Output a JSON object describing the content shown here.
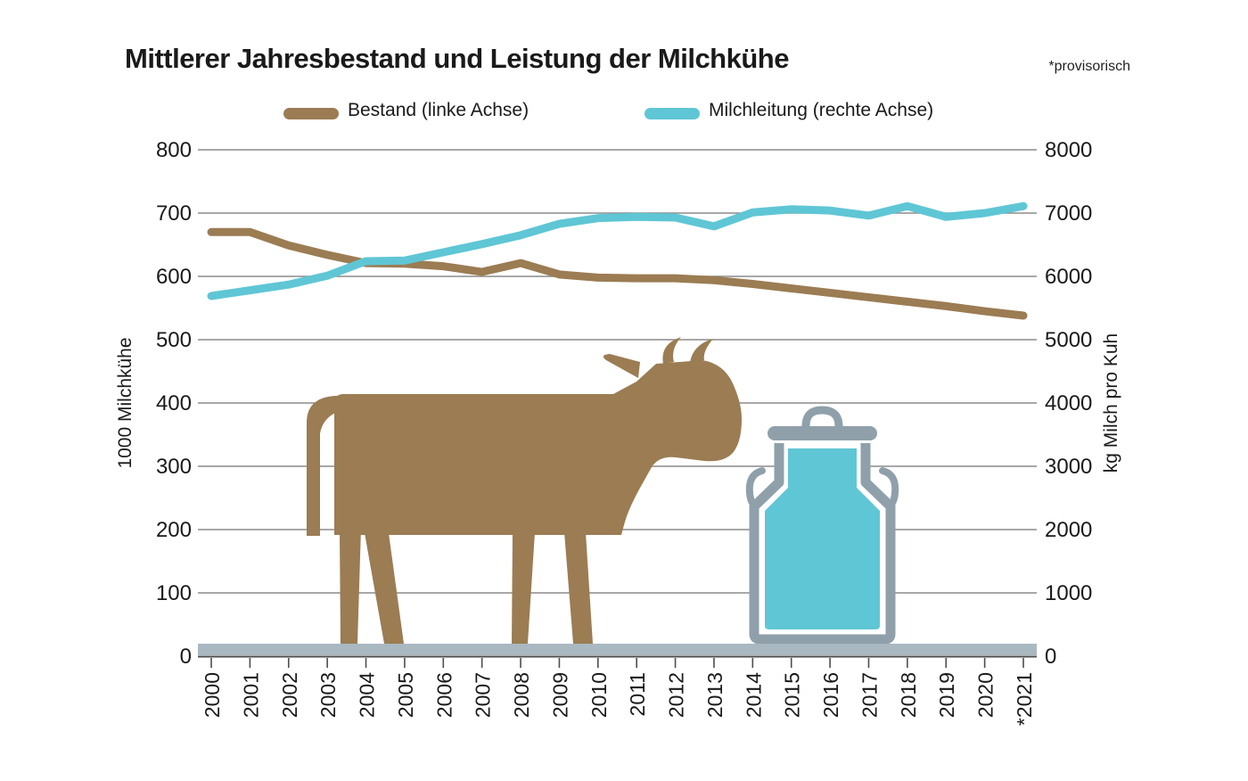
{
  "title": "Mittlerer Jahresbestand und Leistung der Milchkühe",
  "note": "*provisorisch",
  "chart_data": {
    "type": "line",
    "x": [
      "2000",
      "2001",
      "2002",
      "2003",
      "2004",
      "2005",
      "2006",
      "2007",
      "2008",
      "2009",
      "2010",
      "2011",
      "2012",
      "2013",
      "2014",
      "2015",
      "2016",
      "2017",
      "2018",
      "2019",
      "2020",
      "*2021"
    ],
    "series": [
      {
        "name": "Bestand (linke Achse)",
        "axis": "left",
        "color": "#9b7c53",
        "values": [
          670,
          670,
          649,
          634,
          621,
          620,
          616,
          607,
          621,
          603,
          598,
          597,
          597,
          594,
          588,
          581,
          574,
          567,
          560,
          553,
          545,
          538
        ]
      },
      {
        "name": "Milchleitung (rechte Achse)",
        "axis": "right",
        "color": "#5fc6d5",
        "values": [
          5690,
          5780,
          5870,
          6010,
          6240,
          6250,
          6380,
          6510,
          6650,
          6830,
          6920,
          6940,
          6930,
          6790,
          7010,
          7060,
          7040,
          6960,
          7110,
          6940,
          7000,
          7110
        ]
      }
    ],
    "left_axis": {
      "label": "1000 Milchkühe",
      "range": [
        0,
        800
      ],
      "ticks": [
        0,
        100,
        200,
        300,
        400,
        500,
        600,
        700,
        800
      ]
    },
    "right_axis": {
      "label": "kg Milch pro Kuh",
      "range": [
        0,
        8000
      ],
      "ticks": [
        0,
        1000,
        2000,
        3000,
        4000,
        5000,
        6000,
        7000,
        8000
      ]
    },
    "grid": true,
    "legend_position": "top",
    "footnote_marker_year": "*2021"
  },
  "illustrations": {
    "cow": "cow-silhouette",
    "milk_can": "milk-can"
  },
  "colors": {
    "bestand_line": "#9b7c53",
    "milchleistung_line": "#5fc6d5",
    "milk_can_gray": "#8fa0ab",
    "ground_bar": "#a9b8c1",
    "gridline": "#8c8c8c",
    "axis": "#4d4d4d"
  }
}
